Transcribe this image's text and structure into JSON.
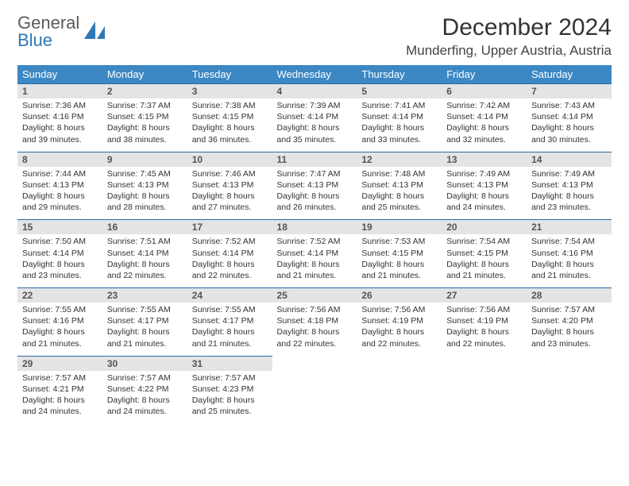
{
  "brand": {
    "part1": "General",
    "part2": "Blue"
  },
  "title": "December 2024",
  "location": "Munderfing, Upper Austria, Austria",
  "colors": {
    "header_bg": "#3b88c4",
    "header_text": "#ffffff",
    "daynum_bg": "#e4e4e4",
    "row_border": "#2b6ca3",
    "brand_gray": "#5a5a5a",
    "brand_blue": "#2f78b7"
  },
  "weekdays": [
    "Sunday",
    "Monday",
    "Tuesday",
    "Wednesday",
    "Thursday",
    "Friday",
    "Saturday"
  ],
  "weeks": [
    [
      {
        "n": "1",
        "sr": "7:36 AM",
        "ss": "4:16 PM",
        "dl": "8 hours and 39 minutes."
      },
      {
        "n": "2",
        "sr": "7:37 AM",
        "ss": "4:15 PM",
        "dl": "8 hours and 38 minutes."
      },
      {
        "n": "3",
        "sr": "7:38 AM",
        "ss": "4:15 PM",
        "dl": "8 hours and 36 minutes."
      },
      {
        "n": "4",
        "sr": "7:39 AM",
        "ss": "4:14 PM",
        "dl": "8 hours and 35 minutes."
      },
      {
        "n": "5",
        "sr": "7:41 AM",
        "ss": "4:14 PM",
        "dl": "8 hours and 33 minutes."
      },
      {
        "n": "6",
        "sr": "7:42 AM",
        "ss": "4:14 PM",
        "dl": "8 hours and 32 minutes."
      },
      {
        "n": "7",
        "sr": "7:43 AM",
        "ss": "4:14 PM",
        "dl": "8 hours and 30 minutes."
      }
    ],
    [
      {
        "n": "8",
        "sr": "7:44 AM",
        "ss": "4:13 PM",
        "dl": "8 hours and 29 minutes."
      },
      {
        "n": "9",
        "sr": "7:45 AM",
        "ss": "4:13 PM",
        "dl": "8 hours and 28 minutes."
      },
      {
        "n": "10",
        "sr": "7:46 AM",
        "ss": "4:13 PM",
        "dl": "8 hours and 27 minutes."
      },
      {
        "n": "11",
        "sr": "7:47 AM",
        "ss": "4:13 PM",
        "dl": "8 hours and 26 minutes."
      },
      {
        "n": "12",
        "sr": "7:48 AM",
        "ss": "4:13 PM",
        "dl": "8 hours and 25 minutes."
      },
      {
        "n": "13",
        "sr": "7:49 AM",
        "ss": "4:13 PM",
        "dl": "8 hours and 24 minutes."
      },
      {
        "n": "14",
        "sr": "7:49 AM",
        "ss": "4:13 PM",
        "dl": "8 hours and 23 minutes."
      }
    ],
    [
      {
        "n": "15",
        "sr": "7:50 AM",
        "ss": "4:14 PM",
        "dl": "8 hours and 23 minutes."
      },
      {
        "n": "16",
        "sr": "7:51 AM",
        "ss": "4:14 PM",
        "dl": "8 hours and 22 minutes."
      },
      {
        "n": "17",
        "sr": "7:52 AM",
        "ss": "4:14 PM",
        "dl": "8 hours and 22 minutes."
      },
      {
        "n": "18",
        "sr": "7:52 AM",
        "ss": "4:14 PM",
        "dl": "8 hours and 21 minutes."
      },
      {
        "n": "19",
        "sr": "7:53 AM",
        "ss": "4:15 PM",
        "dl": "8 hours and 21 minutes."
      },
      {
        "n": "20",
        "sr": "7:54 AM",
        "ss": "4:15 PM",
        "dl": "8 hours and 21 minutes."
      },
      {
        "n": "21",
        "sr": "7:54 AM",
        "ss": "4:16 PM",
        "dl": "8 hours and 21 minutes."
      }
    ],
    [
      {
        "n": "22",
        "sr": "7:55 AM",
        "ss": "4:16 PM",
        "dl": "8 hours and 21 minutes."
      },
      {
        "n": "23",
        "sr": "7:55 AM",
        "ss": "4:17 PM",
        "dl": "8 hours and 21 minutes."
      },
      {
        "n": "24",
        "sr": "7:55 AM",
        "ss": "4:17 PM",
        "dl": "8 hours and 21 minutes."
      },
      {
        "n": "25",
        "sr": "7:56 AM",
        "ss": "4:18 PM",
        "dl": "8 hours and 22 minutes."
      },
      {
        "n": "26",
        "sr": "7:56 AM",
        "ss": "4:19 PM",
        "dl": "8 hours and 22 minutes."
      },
      {
        "n": "27",
        "sr": "7:56 AM",
        "ss": "4:19 PM",
        "dl": "8 hours and 22 minutes."
      },
      {
        "n": "28",
        "sr": "7:57 AM",
        "ss": "4:20 PM",
        "dl": "8 hours and 23 minutes."
      }
    ],
    [
      {
        "n": "29",
        "sr": "7:57 AM",
        "ss": "4:21 PM",
        "dl": "8 hours and 24 minutes."
      },
      {
        "n": "30",
        "sr": "7:57 AM",
        "ss": "4:22 PM",
        "dl": "8 hours and 24 minutes."
      },
      {
        "n": "31",
        "sr": "7:57 AM",
        "ss": "4:23 PM",
        "dl": "8 hours and 25 minutes."
      },
      null,
      null,
      null,
      null
    ]
  ],
  "labels": {
    "sunrise": "Sunrise:",
    "sunset": "Sunset:",
    "daylight": "Daylight:"
  }
}
